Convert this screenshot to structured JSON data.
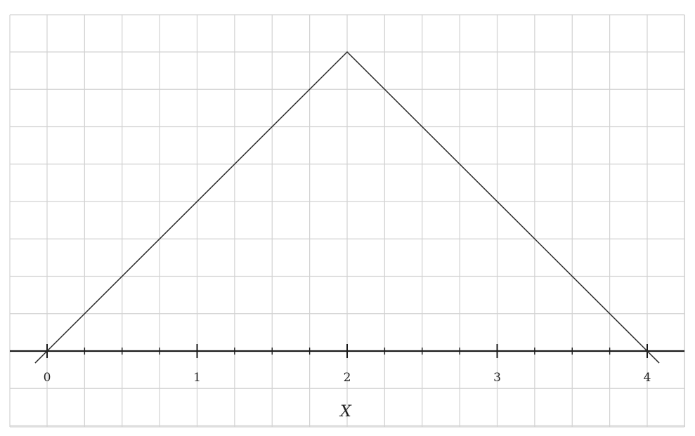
{
  "chart_data": {
    "type": "line",
    "title": "",
    "xlabel": "X",
    "ylabel": "",
    "xlim": [
      0,
      4
    ],
    "ylim": [
      0,
      4
    ],
    "x_ticks": [
      "0",
      "1",
      "2",
      "3",
      "4"
    ],
    "x_minor_step": 0.25,
    "grid": true,
    "y_axis_visible": false,
    "series": [
      {
        "x": [
          0,
          2,
          4
        ],
        "y": [
          0,
          4,
          0
        ],
        "color": "#2a2a2a"
      }
    ]
  }
}
